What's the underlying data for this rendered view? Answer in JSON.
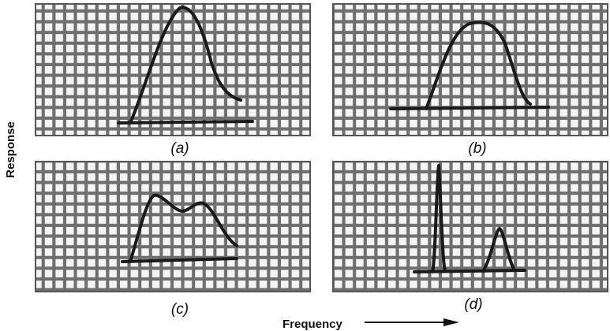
{
  "figure": {
    "y_label": "Response",
    "x_label": "Frequency",
    "panels": [
      {
        "label": "(a)"
      },
      {
        "label": "(b)"
      },
      {
        "label": "(c)"
      },
      {
        "label": "(d)"
      }
    ]
  }
}
